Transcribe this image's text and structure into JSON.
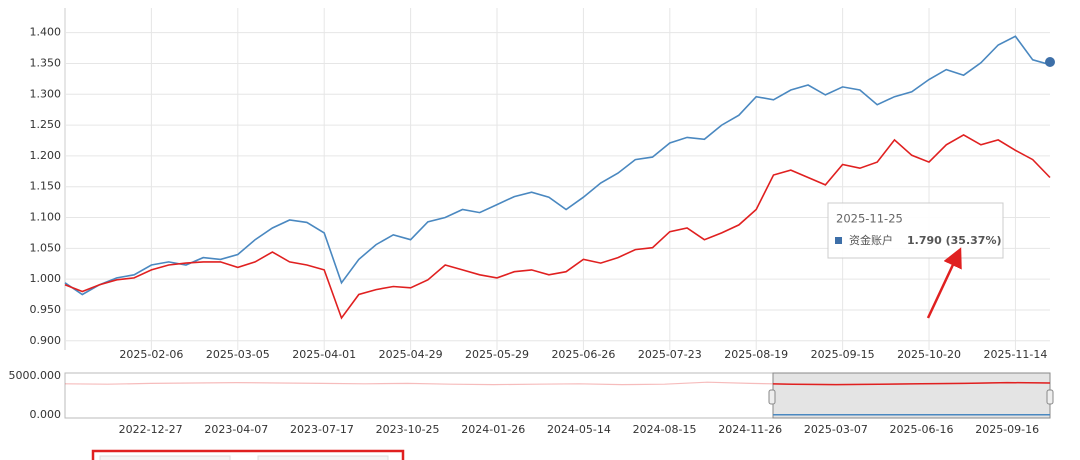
{
  "chart_data": [
    {
      "type": "line",
      "categories": [
        null,
        null,
        null,
        null,
        null,
        "2025-02-06",
        null,
        null,
        null,
        null,
        "2025-03-05",
        null,
        null,
        null,
        null,
        "2025-04-01",
        null,
        null,
        null,
        null,
        "2025-04-29",
        null,
        null,
        null,
        null,
        "2025-05-29",
        null,
        null,
        null,
        null,
        "2025-06-26",
        null,
        null,
        null,
        null,
        "2025-07-23",
        null,
        null,
        null,
        null,
        "2025-08-19",
        null,
        null,
        null,
        null,
        "2025-09-15",
        null,
        null,
        null,
        null,
        "2025-10-20",
        null,
        null,
        null,
        null,
        "2025-11-14",
        null,
        null
      ],
      "series": [
        {
          "color": "#4a88c0",
          "values": [
            0.994,
            0.975,
            0.991,
            1.002,
            1.007,
            1.023,
            1.028,
            1.023,
            1.035,
            1.032,
            1.04,
            1.064,
            1.083,
            1.096,
            1.092,
            1.075,
            0.994,
            1.032,
            1.056,
            1.072,
            1.064,
            1.093,
            1.1,
            1.113,
            1.108,
            1.121,
            1.134,
            1.141,
            1.133,
            1.113,
            1.133,
            1.156,
            1.172,
            1.194,
            1.198,
            1.221,
            1.23,
            1.227,
            1.25,
            1.266,
            1.296,
            1.291,
            1.307,
            1.315,
            1.299,
            1.312,
            1.307,
            1.283,
            1.296,
            1.304,
            1.324,
            1.34,
            1.331,
            1.351,
            1.38,
            1.394,
            1.356,
            1.348
          ]
        },
        {
          "color": "#e02020",
          "values": [
            0.991,
            0.98,
            0.991,
            0.999,
            1.002,
            1.015,
            1.023,
            1.026,
            1.028,
            1.028,
            1.019,
            1.028,
            1.044,
            1.028,
            1.023,
            1.015,
            0.937,
            0.975,
            0.983,
            0.988,
            0.986,
            0.999,
            1.023,
            1.015,
            1.007,
            1.002,
            1.012,
            1.015,
            1.007,
            1.012,
            1.032,
            1.026,
            1.035,
            1.048,
            1.051,
            1.077,
            1.083,
            1.064,
            1.075,
            1.088,
            1.113,
            1.169,
            1.177,
            1.165,
            1.153,
            1.186,
            1.18,
            1.19,
            1.226,
            1.201,
            1.19,
            1.218,
            1.234,
            1.218,
            1.226,
            1.209,
            1.194,
            1.165
          ]
        }
      ],
      "ylim": [
        0.885,
        1.44
      ],
      "yticks": [
        {
          "value": 0.9,
          "label": "0.900"
        },
        {
          "value": 0.95,
          "label": "0.950"
        },
        {
          "value": 1.0,
          "label": "1.000"
        },
        {
          "value": 1.05,
          "label": "1.050"
        },
        {
          "value": 1.1,
          "label": "1.100"
        },
        {
          "value": 1.15,
          "label": "1.150"
        },
        {
          "value": 1.2,
          "label": "1.200"
        },
        {
          "value": 1.25,
          "label": "1.250"
        },
        {
          "value": 1.3,
          "label": "1.300"
        },
        {
          "value": 1.35,
          "label": "1.350"
        },
        {
          "value": 1.4,
          "label": "1.400"
        }
      ],
      "grid": true,
      "tooltip": {
        "title": "2025-11-25",
        "name": "资金账户",
        "text": "1.790 (35.37%)",
        "color": "#3d6fa8"
      }
    },
    {
      "type": "navigator",
      "categories": [
        null,
        null,
        "2022-12-27",
        null,
        "2023-04-07",
        null,
        "2023-07-17",
        null,
        "2023-10-25",
        null,
        "2024-01-26",
        null,
        "2024-05-14",
        null,
        "2024-08-15",
        null,
        "2024-11-26",
        null,
        "2025-03-07",
        null,
        "2025-06-16",
        null,
        "2025-09-16",
        null
      ],
      "series": [
        {
          "color": "#e02020",
          "values": [
            4000,
            3950,
            4050,
            4100,
            4150,
            4100,
            4050,
            4000,
            4050,
            3950,
            3900,
            3950,
            4000,
            3900,
            3950,
            4200,
            4050,
            3950,
            3900,
            3950,
            4000,
            4050,
            4150,
            4100
          ]
        },
        {
          "color": "#4a88c0",
          "values": [
            null,
            null,
            null,
            null,
            null,
            null,
            null,
            null,
            null,
            null,
            null,
            null,
            null,
            null,
            null,
            null,
            30,
            30,
            30,
            30,
            30,
            30,
            30,
            30
          ]
        }
      ],
      "ylim": [
        0,
        5000
      ],
      "yticks": [
        {
          "value": 0,
          "label": "0.000"
        },
        {
          "value": 5000,
          "label": "5000.000"
        }
      ]
    }
  ]
}
